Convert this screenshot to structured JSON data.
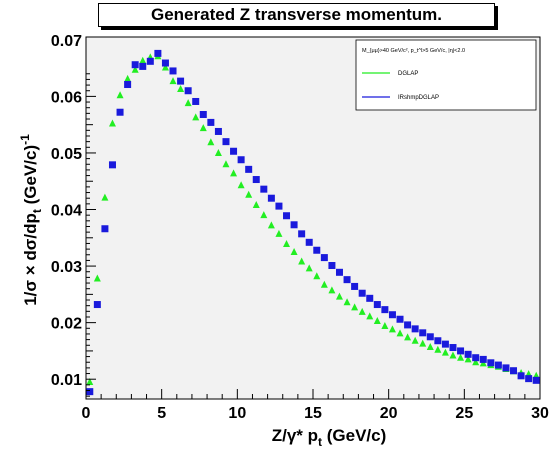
{
  "chart_data": {
    "type": "scatter",
    "title": "Generated Z transverse momentum.",
    "xlabel": "Z/γ* p_t (GeV/c)",
    "ylabel": "1/σ × dσ/dp_t (GeV/c)^-1",
    "xlim": [
      0,
      30
    ],
    "ylim": [
      0.0065,
      0.0705
    ],
    "x_ticks": [
      "0",
      "5",
      "10",
      "15",
      "20",
      "25",
      "30"
    ],
    "y_ticks": [
      "0.01",
      "0.02",
      "0.03",
      "0.04",
      "0.05",
      "0.06",
      "0.07"
    ],
    "grid": false,
    "legend_position": "top-right",
    "legend_header": "M_{μμ}>40 GeV/c², p_t^l>5 GeV/c, |η|<2.0",
    "colors": {
      "series_1": "#22ee22",
      "series_2": "#1a1adc",
      "frame_bg": "#f2f2f2"
    },
    "series": [
      {
        "name": "DGLAP",
        "marker": "triangle",
        "x": [
          0.25,
          0.75,
          1.25,
          1.75,
          2.25,
          2.75,
          3.25,
          3.75,
          4.25,
          4.75,
          5.25,
          5.75,
          6.25,
          6.75,
          7.25,
          7.75,
          8.25,
          8.75,
          9.25,
          9.75,
          10.25,
          10.75,
          11.25,
          11.75,
          12.25,
          12.75,
          13.25,
          13.75,
          14.25,
          14.75,
          15.25,
          15.75,
          16.25,
          16.75,
          17.25,
          17.75,
          18.25,
          18.75,
          19.25,
          19.75,
          20.25,
          20.75,
          21.25,
          21.75,
          22.25,
          22.75,
          23.25,
          23.75,
          24.25,
          24.75,
          25.25,
          25.75,
          26.25,
          26.75,
          27.25,
          27.75,
          28.25,
          28.75,
          29.25,
          29.75
        ],
        "y": [
          0.0095,
          0.0278,
          0.0421,
          0.0552,
          0.0602,
          0.0631,
          0.0647,
          0.0663,
          0.0669,
          0.0671,
          0.0651,
          0.0627,
          0.0613,
          0.0588,
          0.0563,
          0.0544,
          0.0519,
          0.05,
          0.048,
          0.0464,
          0.0443,
          0.0426,
          0.0408,
          0.039,
          0.0372,
          0.0357,
          0.0339,
          0.0325,
          0.0308,
          0.0296,
          0.0282,
          0.0267,
          0.0257,
          0.0246,
          0.0236,
          0.0227,
          0.0219,
          0.0211,
          0.0203,
          0.0194,
          0.0188,
          0.0181,
          0.0174,
          0.0168,
          0.0163,
          0.0157,
          0.0152,
          0.0147,
          0.0142,
          0.0138,
          0.0135,
          0.013,
          0.0128,
          0.0125,
          0.0122,
          0.0118,
          0.0114,
          0.0111,
          0.0109,
          0.0106
        ]
      },
      {
        "name": "IRshmpDGLAP",
        "marker": "square",
        "x": [
          0.25,
          0.75,
          1.25,
          1.75,
          2.25,
          2.75,
          3.25,
          3.75,
          4.25,
          4.75,
          5.25,
          5.75,
          6.25,
          6.75,
          7.25,
          7.75,
          8.25,
          8.75,
          9.25,
          9.75,
          10.25,
          10.75,
          11.25,
          11.75,
          12.25,
          12.75,
          13.25,
          13.75,
          14.25,
          14.75,
          15.25,
          15.75,
          16.25,
          16.75,
          17.25,
          17.75,
          18.25,
          18.75,
          19.25,
          19.75,
          20.25,
          20.75,
          21.25,
          21.75,
          22.25,
          22.75,
          23.25,
          23.75,
          24.25,
          24.75,
          25.25,
          25.75,
          26.25,
          26.75,
          27.25,
          27.75,
          28.25,
          28.75,
          29.25,
          29.75
        ],
        "y": [
          0.0078,
          0.0232,
          0.0366,
          0.0479,
          0.0572,
          0.0621,
          0.0656,
          0.0653,
          0.0662,
          0.0676,
          0.0659,
          0.0645,
          0.0627,
          0.061,
          0.0591,
          0.0568,
          0.0554,
          0.0538,
          0.052,
          0.0503,
          0.0488,
          0.0471,
          0.0453,
          0.0436,
          0.042,
          0.0406,
          0.0389,
          0.0373,
          0.0357,
          0.0342,
          0.0328,
          0.0315,
          0.0301,
          0.0289,
          0.0276,
          0.0264,
          0.0252,
          0.0243,
          0.0232,
          0.0223,
          0.0214,
          0.0206,
          0.0196,
          0.0189,
          0.0182,
          0.0175,
          0.0168,
          0.0162,
          0.0156,
          0.015,
          0.0144,
          0.0138,
          0.0135,
          0.0129,
          0.0125,
          0.012,
          0.0115,
          0.0106,
          0.0101,
          0.0098
        ]
      }
    ]
  }
}
